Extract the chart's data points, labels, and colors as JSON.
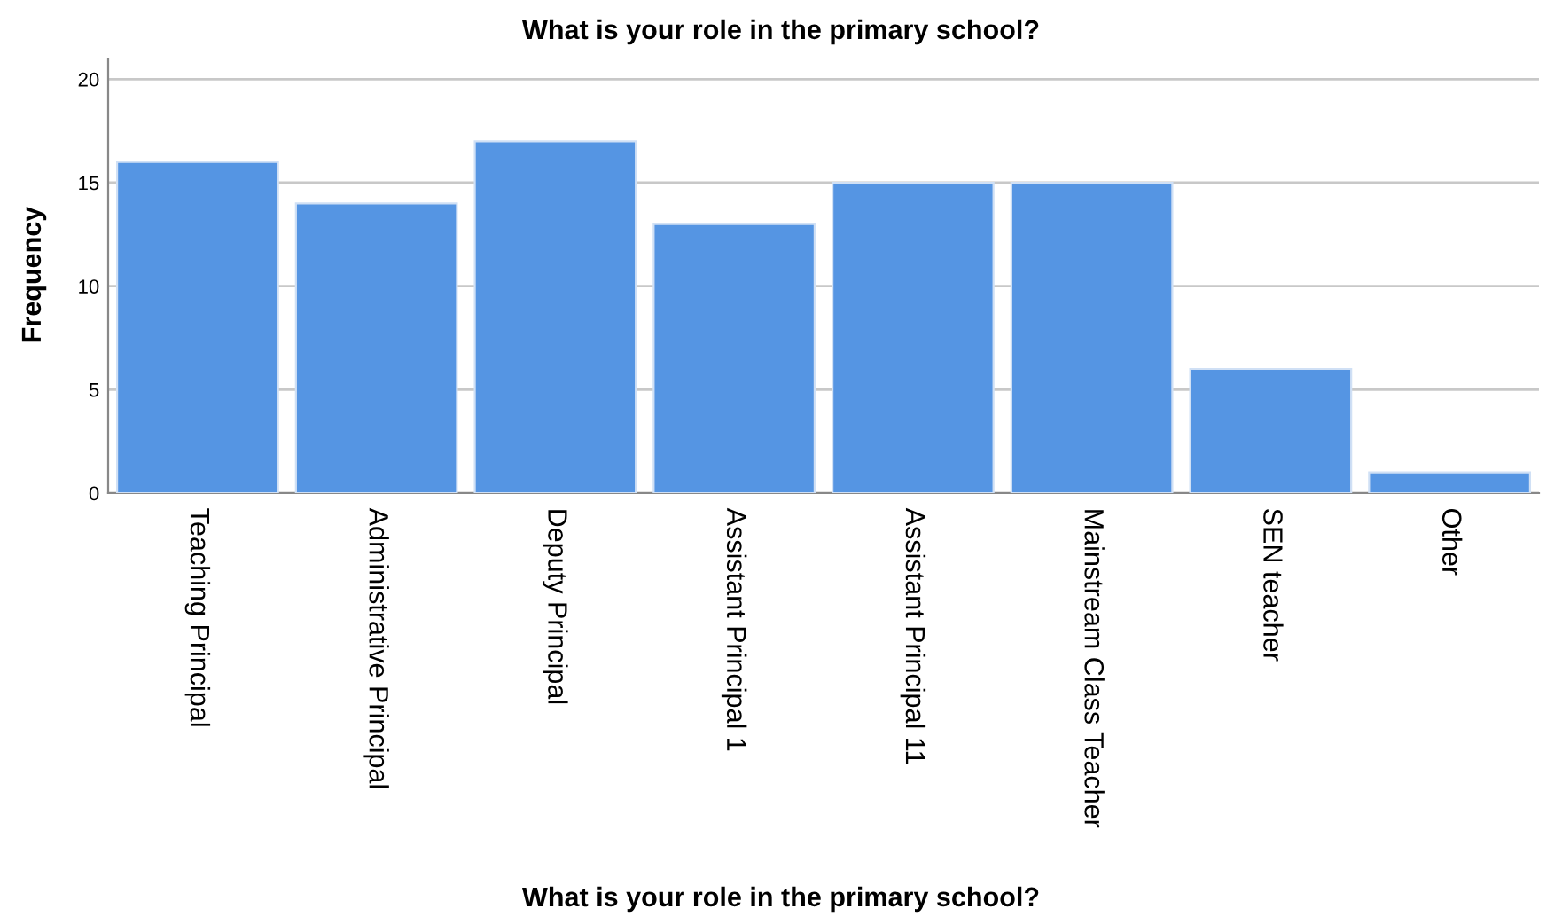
{
  "chart_data": {
    "type": "bar",
    "title": "What is your role in the primary school?",
    "xlabel": "What is your role in the primary school?",
    "ylabel": "Frequency",
    "categories": [
      "Teaching Principal",
      "Administrative Principal",
      "Deputy Principal",
      "Assistant Principal 1",
      "Assistant Principal 11",
      "Mainstream Class Teacher",
      "SEN teacher",
      "Other"
    ],
    "values": [
      16,
      14,
      17,
      13,
      15,
      15,
      6,
      1
    ],
    "color": "#5595e3",
    "ylim": [
      0,
      21
    ],
    "yticks": [
      0,
      5,
      10,
      15,
      20
    ],
    "grid": "y"
  }
}
